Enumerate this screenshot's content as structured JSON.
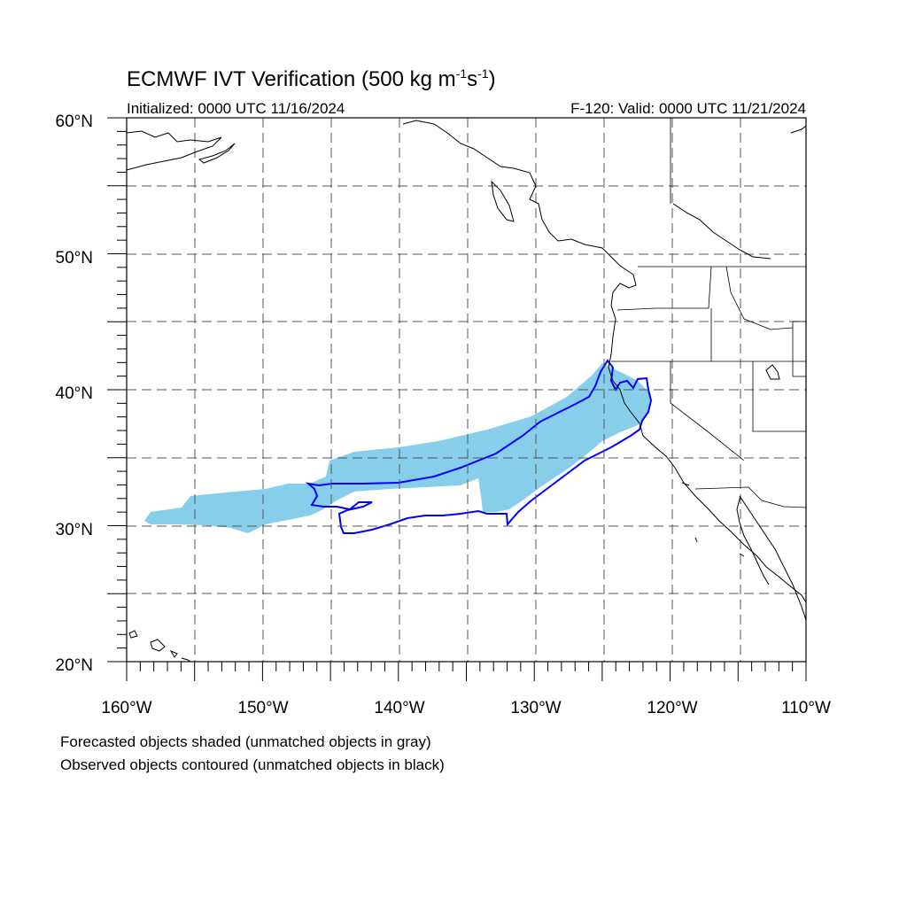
{
  "header": {
    "title": "ECMWF IVT Verification (500 kg m",
    "title_exp1": "-1",
    "title_mid": "s",
    "title_exp2": "-1",
    "title_end": ")",
    "initialized": "Initialized: 0000 UTC 11/16/2024",
    "valid": "F-120: Valid: 0000 UTC 11/21/2024"
  },
  "axes": {
    "lat_labels": [
      "60°N",
      "50°N",
      "40°N",
      "30°N",
      "20°N"
    ],
    "lon_labels": [
      "160°W",
      "150°W",
      "140°W",
      "130°W",
      "120°W",
      "110°W"
    ],
    "lat_range": [
      20,
      60
    ],
    "lon_range": [
      -160,
      -110
    ]
  },
  "legend": {
    "line1": "Forecasted objects shaded (unmatched objects in gray)",
    "line2": "Observed objects contoured (unmatched objects in black)"
  },
  "colors": {
    "forecast_fill": "#87ceeb",
    "observed_contour": "#0000ff",
    "grid": "#555555"
  }
}
